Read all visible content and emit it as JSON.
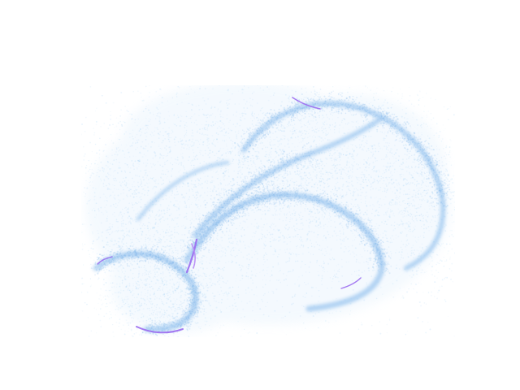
{
  "figure": {
    "background_color": "#ffffff",
    "point_color": "#8cc7f2",
    "dense_color": "#7ab3ea",
    "accent_color": "#9b6cf0"
  }
}
